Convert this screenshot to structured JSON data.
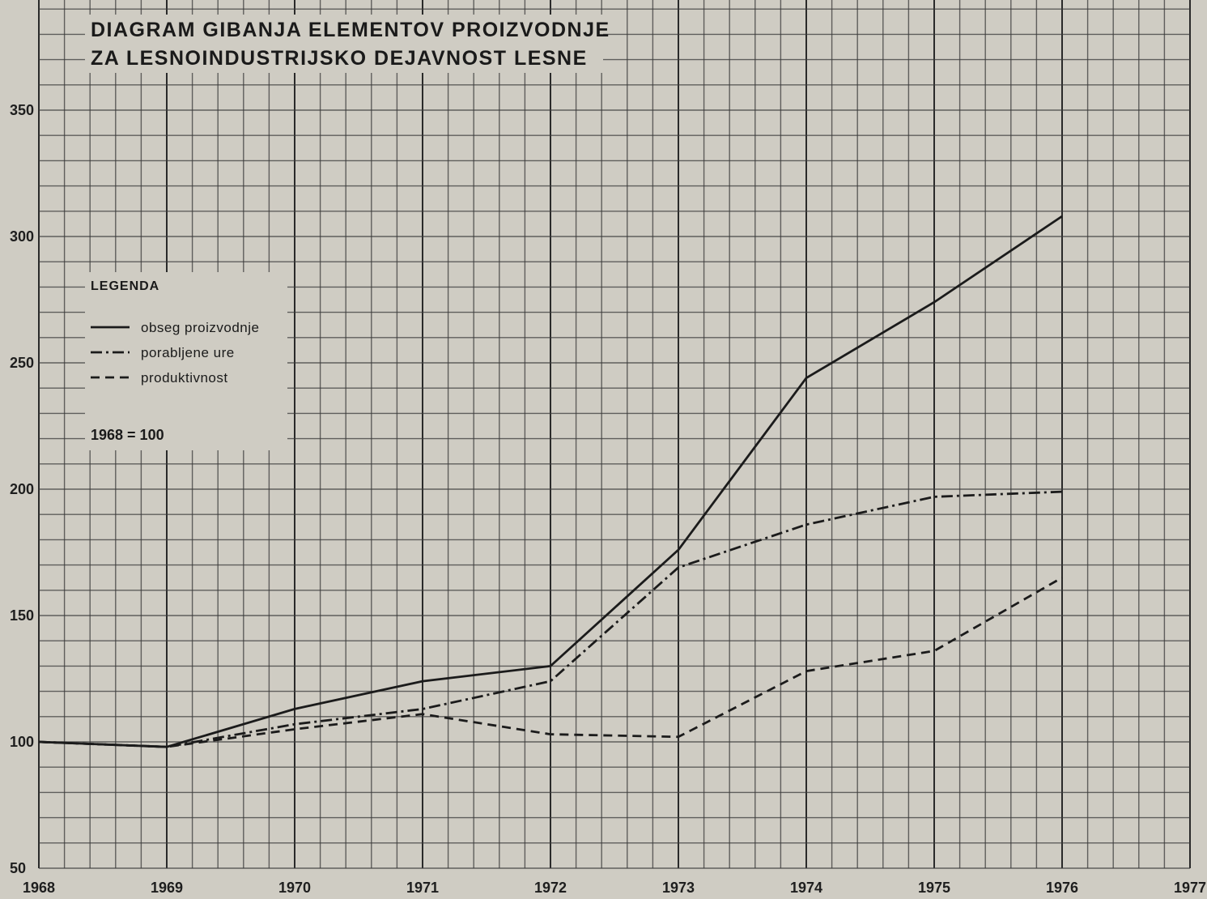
{
  "chart_data": {
    "type": "line",
    "title_lines": [
      "DIAGRAM GIBANJA ELEMENTOV PROIZVODNJE",
      "ZA LESNOINDUSTRIJSKO DEJAVNOST LESNE"
    ],
    "x": [
      1968,
      1969,
      1970,
      1971,
      1972,
      1973,
      1974,
      1975,
      1976
    ],
    "x_ticks": [
      "1968",
      "1969",
      "1970",
      "1971",
      "1972",
      "1973",
      "1974",
      "1975",
      "1976",
      "1977"
    ],
    "y_ticks": [
      "50",
      "100",
      "150",
      "200",
      "250",
      "300",
      "350"
    ],
    "xlim": [
      1968,
      1977
    ],
    "ylim": [
      50,
      400
    ],
    "grid": true,
    "legend": {
      "title": "LEGENDA",
      "placement": "top-left",
      "base_note": "1968 = 100"
    },
    "series": [
      {
        "name": "obseg proizvodnje",
        "style": "solid",
        "values": [
          100,
          98,
          113,
          124,
          130,
          176,
          244,
          274,
          308
        ]
      },
      {
        "name": "porabljene ure",
        "style": "dash-dot",
        "values": [
          100,
          98,
          107,
          113,
          124,
          169,
          186,
          197,
          199
        ]
      },
      {
        "name": "produktivnost",
        "style": "dashed",
        "values": [
          100,
          98,
          105,
          111,
          103,
          102,
          128,
          136,
          165
        ]
      }
    ]
  }
}
